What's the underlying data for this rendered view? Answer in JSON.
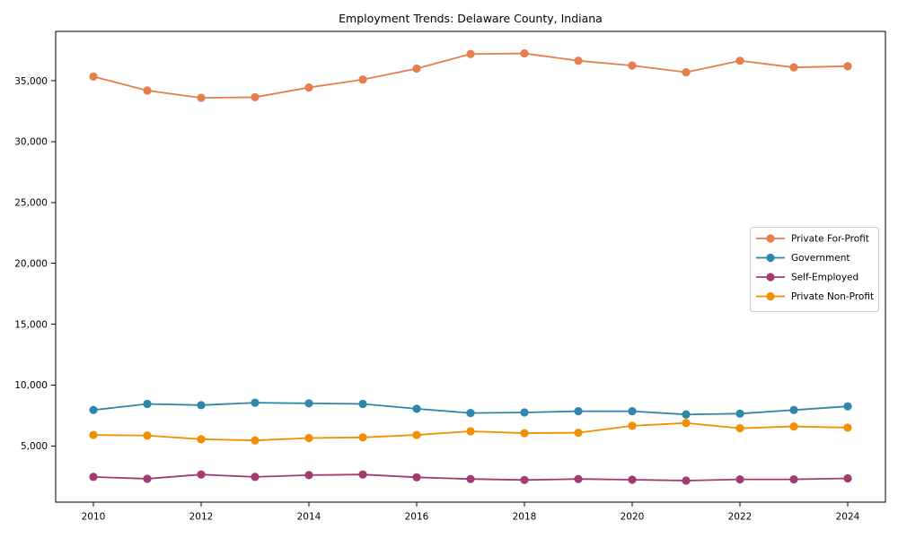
{
  "chart_data": {
    "type": "line",
    "title": "Employment Trends: Delaware County, Indiana",
    "xlabel": "",
    "ylabel": "",
    "grid": false,
    "legend_position": "center-right",
    "marker": "circle",
    "x": [
      2010,
      2011,
      2012,
      2013,
      2014,
      2015,
      2016,
      2017,
      2018,
      2019,
      2020,
      2021,
      2022,
      2023,
      2024
    ],
    "series": [
      {
        "name": "Private For-Profit",
        "color": "#E67D4A",
        "values": [
          35350,
          34200,
          33600,
          33650,
          34450,
          35100,
          36000,
          37200,
          37250,
          36650,
          36250,
          35700,
          36650,
          36100,
          36200
        ]
      },
      {
        "name": "Government",
        "color": "#2E86AB",
        "values": [
          7950,
          8450,
          8350,
          8550,
          8500,
          8450,
          8050,
          7700,
          7750,
          7850,
          7850,
          7580,
          7650,
          7950,
          8250
        ]
      },
      {
        "name": "Self-Employed",
        "color": "#A23B72",
        "values": [
          2450,
          2300,
          2650,
          2450,
          2600,
          2650,
          2420,
          2280,
          2200,
          2280,
          2220,
          2150,
          2250,
          2250,
          2330
        ]
      },
      {
        "name": "Private Non-Profit",
        "color": "#F18F01",
        "values": [
          5900,
          5850,
          5550,
          5450,
          5650,
          5700,
          5900,
          6200,
          6050,
          6080,
          6650,
          6880,
          6450,
          6600,
          6500
        ]
      }
    ],
    "xlim": [
      2009.3,
      2024.7
    ],
    "ylim": [
      380,
      39060
    ],
    "xticks": [
      2010,
      2012,
      2014,
      2016,
      2018,
      2020,
      2022,
      2024
    ],
    "xtick_labels": [
      "2010",
      "2012",
      "2014",
      "2016",
      "2018",
      "2020",
      "2022",
      "2024"
    ],
    "yticks": [
      5000,
      10000,
      15000,
      20000,
      25000,
      30000,
      35000
    ],
    "ytick_labels": [
      "5,000",
      "10,000",
      "15,000",
      "20,000",
      "25,000",
      "30,000",
      "35,000"
    ],
    "axis_color": "#000000",
    "legend_border_color": "#cccccc",
    "legend_bg_color": "#ffffff"
  }
}
